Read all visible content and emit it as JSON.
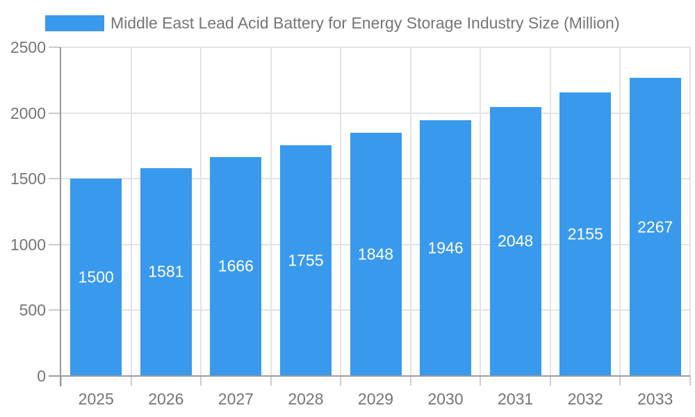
{
  "chart_data": {
    "type": "bar",
    "title": "Middle East Lead Acid Battery for Energy Storage Industry Size (Million)",
    "categories": [
      "2025",
      "2026",
      "2027",
      "2028",
      "2029",
      "2030",
      "2031",
      "2032",
      "2033"
    ],
    "values": [
      1500,
      1581,
      1666,
      1755,
      1848,
      1946,
      2048,
      2155,
      2267
    ],
    "series_name": "Middle East Lead Acid Battery for Energy Storage Industry Size (Million)",
    "xlabel": "",
    "ylabel": "",
    "ylim": [
      0,
      2500
    ],
    "yticks": [
      0,
      500,
      1000,
      1500,
      2000,
      2500
    ],
    "grid": "horizontal and vertical light gridlines",
    "legend_position": "top-left",
    "bar_label_position": "inside-center",
    "colors": {
      "bar": "#3999ED",
      "bar_value_text": "#FFFFFF",
      "axis_text": "#757575",
      "axis_line": "#9B9B9B",
      "gridline": "#E3E3E3",
      "tick": "#CCCCCC",
      "background": "#FFFFFF"
    }
  }
}
